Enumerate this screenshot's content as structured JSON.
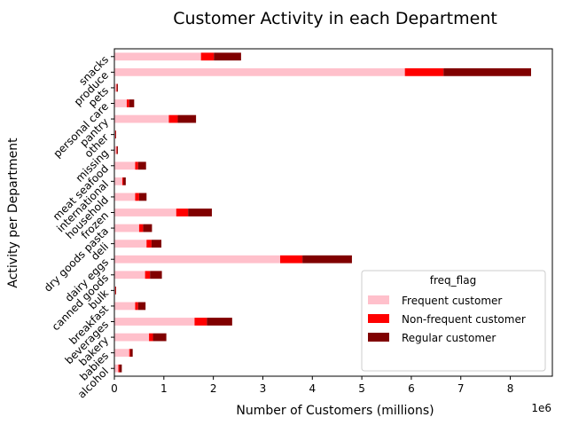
{
  "chart_data": {
    "type": "bar",
    "orientation": "horizontal",
    "stacked": true,
    "title": "Customer Activity in each Department",
    "xlabel": "Number of Customers (millions)",
    "ylabel": "Activity per Department",
    "x_offset_label": "1e6",
    "xlim": [
      0,
      8.85
    ],
    "xticks": [
      "0",
      "1",
      "2",
      "3",
      "4",
      "5",
      "6",
      "7",
      "8"
    ],
    "grid": false,
    "legend_placement": "bottom-right",
    "legend_title": "freq_flag",
    "categories": [
      "alcohol",
      "babies",
      "bakery",
      "beverages",
      "breakfast",
      "bulk",
      "canned goods",
      "dairy eggs",
      "deli",
      "dry goods pasta",
      "frozen",
      "household",
      "international",
      "meat seafood",
      "missing",
      "other",
      "pantry",
      "personal care",
      "pets",
      "produce",
      "snacks"
    ],
    "series": [
      {
        "name": "Frequent customer",
        "color": "#ffc0cb",
        "values": [
          0.08,
          0.3,
          0.7,
          1.62,
          0.42,
          0.02,
          0.62,
          3.35,
          0.65,
          0.5,
          1.25,
          0.42,
          0.16,
          0.42,
          0.04,
          0.02,
          1.1,
          0.25,
          0.04,
          5.87,
          1.75
        ]
      },
      {
        "name": "Non-frequent customer",
        "color": "#ff0000",
        "values": [
          0.02,
          0.02,
          0.08,
          0.25,
          0.06,
          0.005,
          0.1,
          0.45,
          0.1,
          0.08,
          0.24,
          0.08,
          0.02,
          0.06,
          0.01,
          0.005,
          0.18,
          0.05,
          0.01,
          0.78,
          0.26
        ]
      },
      {
        "name": "Regular customer",
        "color": "#800000",
        "values": [
          0.05,
          0.05,
          0.27,
          0.51,
          0.15,
          0.01,
          0.24,
          1.0,
          0.2,
          0.18,
          0.48,
          0.15,
          0.05,
          0.16,
          0.02,
          0.01,
          0.37,
          0.1,
          0.02,
          1.77,
          0.55
        ]
      }
    ]
  }
}
